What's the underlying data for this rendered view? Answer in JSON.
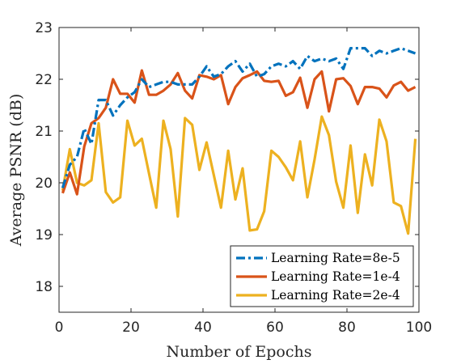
{
  "chart_data": {
    "type": "line",
    "title": "",
    "xlabel": "Number of Epochs",
    "ylabel": "Average PSNR (dB)",
    "xlim": [
      0,
      100
    ],
    "ylim": [
      17.5,
      23
    ],
    "xticks": [
      0,
      20,
      40,
      60,
      80,
      100
    ],
    "yticks": [
      18,
      19,
      20,
      21,
      22,
      23
    ],
    "xtick_labels": [
      "0",
      "20",
      "40",
      "60",
      "80",
      "100"
    ],
    "ytick_labels": [
      "18",
      "19",
      "20",
      "21",
      "22",
      "23"
    ],
    "grid": false,
    "legend_position": "bottom-right",
    "x": [
      1,
      3,
      5,
      7,
      9,
      11,
      13,
      15,
      17,
      19,
      21,
      23,
      25,
      27,
      29,
      31,
      33,
      35,
      37,
      39,
      41,
      43,
      45,
      47,
      49,
      51,
      53,
      55,
      57,
      59,
      61,
      63,
      65,
      67,
      69,
      71,
      73,
      75,
      77,
      79,
      81,
      83,
      85,
      87,
      89,
      91,
      93,
      95,
      97,
      99
    ],
    "series": [
      {
        "name": "Learning Rate=8e-5",
        "color": "#0072BD",
        "style": "dashdot",
        "values": [
          19.9,
          20.35,
          20.5,
          21.05,
          20.75,
          21.6,
          21.6,
          21.3,
          21.5,
          21.65,
          21.75,
          22.0,
          21.85,
          21.9,
          21.95,
          21.95,
          21.9,
          21.9,
          21.9,
          22.05,
          22.25,
          22.05,
          22.1,
          22.25,
          22.35,
          22.15,
          22.3,
          22.05,
          22.1,
          22.25,
          22.3,
          22.25,
          22.35,
          22.2,
          22.45,
          22.35,
          22.4,
          22.35,
          22.4,
          22.2,
          22.6,
          22.6,
          22.6,
          22.45,
          22.55,
          22.5,
          22.55,
          22.6,
          22.55,
          22.5
        ]
      },
      {
        "name": "Learning Rate=1e-4",
        "color": "#D95319",
        "style": "solid",
        "values": [
          19.8,
          20.2,
          19.78,
          20.7,
          21.15,
          21.25,
          21.45,
          22.0,
          21.72,
          21.72,
          21.55,
          22.17,
          21.7,
          21.7,
          21.78,
          21.9,
          22.12,
          21.78,
          21.63,
          22.08,
          22.05,
          22.0,
          22.08,
          21.52,
          21.85,
          22.02,
          22.08,
          22.15,
          21.97,
          21.95,
          21.97,
          21.68,
          21.75,
          22.03,
          21.45,
          22.0,
          22.15,
          21.38,
          22.0,
          22.02,
          21.87,
          21.52,
          21.85,
          21.85,
          21.82,
          21.65,
          21.88,
          21.95,
          21.78,
          21.85
        ]
      },
      {
        "name": "Learning Rate=2e-4",
        "color": "#EDB120",
        "style": "solid",
        "values": [
          19.85,
          20.65,
          20.0,
          19.95,
          20.05,
          21.15,
          19.82,
          19.62,
          19.72,
          21.2,
          20.72,
          20.85,
          20.18,
          19.52,
          21.2,
          20.65,
          19.35,
          21.25,
          21.12,
          20.25,
          20.78,
          20.15,
          19.52,
          20.62,
          19.68,
          20.28,
          19.08,
          19.1,
          19.45,
          20.62,
          20.5,
          20.3,
          20.05,
          20.8,
          19.72,
          20.45,
          21.28,
          20.92,
          20.02,
          19.52,
          20.72,
          19.42,
          20.55,
          19.95,
          21.22,
          20.8,
          19.62,
          19.55,
          19.02,
          20.85
        ]
      }
    ]
  }
}
